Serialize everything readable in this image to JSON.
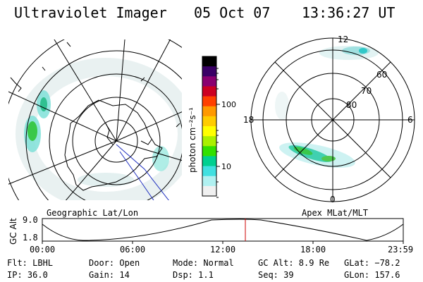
{
  "header": {
    "instrument": "Ultraviolet Imager",
    "date": "05 Oct 07",
    "time": "13:36:27 UT"
  },
  "geographic_panel": {
    "label": "Geographic Lat/Lon"
  },
  "apex_panel": {
    "label": "Apex MLat/MLT",
    "lat_labels": [
      "60",
      "70",
      "80"
    ],
    "mlt_labels": {
      "top": "12",
      "left": "18",
      "right": "6",
      "bottom": "0"
    }
  },
  "colorbar": {
    "unit_label": "photon cm⁻²s⁻¹",
    "ticks": [
      "100",
      "10"
    ],
    "scale": "log",
    "colors": [
      "#000000",
      "#3a0066",
      "#8a0070",
      "#cc0022",
      "#ff4000",
      "#ff9900",
      "#ffcc00",
      "#ffff00",
      "#aaf000",
      "#33e000",
      "#00d090",
      "#40e0e0",
      "#b0f0f0",
      "#f0f0f0"
    ]
  },
  "altitude_plot": {
    "ylabel": "GC Alt",
    "y_ticks": [
      "9.0",
      "1.8"
    ],
    "x_ticks": [
      "00:00",
      "06:00",
      "12:00",
      "18:00",
      "23:59"
    ],
    "current_time_marker_color": "#cc0000"
  },
  "info": {
    "flt": "Flt: LBHL",
    "ip": "IP: 36.0",
    "door": "Door: Open",
    "gain": "Gain: 14",
    "mode": "Mode: Normal",
    "dsp": "Dsp:    1.1",
    "gcalt": "GC Alt: 8.9 Re",
    "seq": "Seq: 39",
    "glat": "GLat: −78.2",
    "glon": "GLon: 157.6"
  }
}
